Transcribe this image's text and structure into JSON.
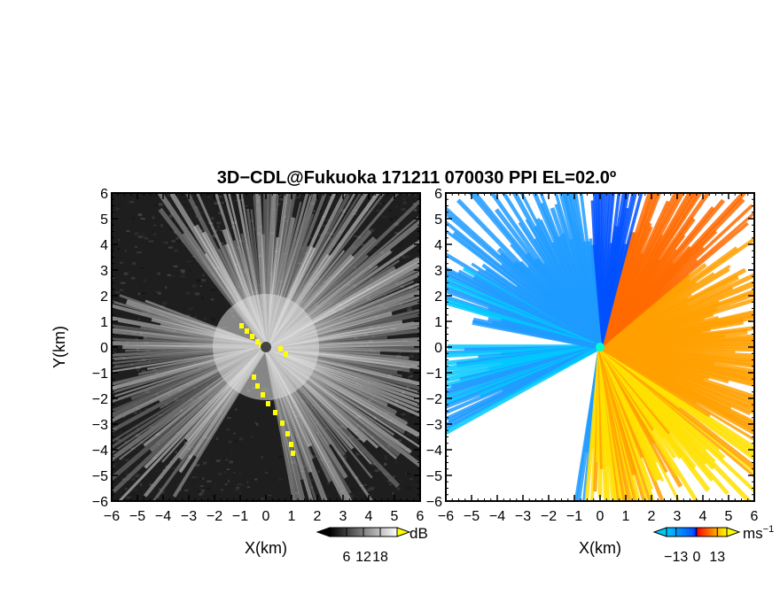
{
  "title": "3D−CDL@Fukuoka 171211 070030 PPI EL=02.0º",
  "chart_data": [
    {
      "type": "heatmap",
      "quantity": "reflectivity",
      "xlabel": "X(km)",
      "ylabel": "Y(km)",
      "xlim": [
        -6,
        6
      ],
      "ylim": [
        -6,
        6
      ],
      "xticks": [
        "−6",
        "−5",
        "−4",
        "−3",
        "−2",
        "−1",
        "0",
        "1",
        "2",
        "3",
        "4",
        "5",
        "6"
      ],
      "yticks": [
        "6",
        "5",
        "4",
        "3",
        "2",
        "1",
        "0",
        "−1",
        "−2",
        "−3",
        "−4",
        "−5",
        "−6"
      ],
      "colorbar": {
        "unit": "dB",
        "ticks": [
          "6",
          "12",
          "18"
        ],
        "tick_values": [
          6,
          12,
          18
        ],
        "range": [
          0,
          24
        ],
        "colors": [
          "#000000",
          "#ffffff"
        ],
        "saturation_color": "#ffff00"
      },
      "background_color": "#1e1e1e",
      "radar_center": [
        0,
        0
      ]
    },
    {
      "type": "heatmap",
      "quantity": "doppler velocity",
      "xlabel": "X(km)",
      "xlim": [
        -6,
        6
      ],
      "ylim": [
        -6,
        6
      ],
      "xticks": [
        "−6",
        "−5",
        "−4",
        "−3",
        "−2",
        "−1",
        "0",
        "1",
        "2",
        "3",
        "4",
        "5",
        "6"
      ],
      "yticks": [
        "6",
        "5",
        "4",
        "3",
        "2",
        "1",
        "0",
        "−1",
        "−2",
        "−3",
        "−4",
        "−5",
        "−6"
      ],
      "colorbar": {
        "unit": "ms",
        "unit_exponent": "−1",
        "ticks": [
          "−13",
          "0",
          "13"
        ],
        "tick_values": [
          -13,
          0,
          13
        ],
        "range": [
          -19,
          19
        ],
        "colors": [
          "#00c8ff",
          "#0050ff",
          "#0000ff",
          "#ff0000",
          "#ff8000",
          "#ffff00"
        ]
      },
      "approx_values": [
        {
          "region": "northwest",
          "velocity": -10
        },
        {
          "region": "west",
          "velocity": -12
        },
        {
          "region": "north-northeast",
          "velocity": -3
        },
        {
          "region": "east",
          "velocity": 9
        },
        {
          "region": "northeast",
          "velocity": 5
        },
        {
          "region": "southeast",
          "velocity": 12
        }
      ]
    }
  ]
}
